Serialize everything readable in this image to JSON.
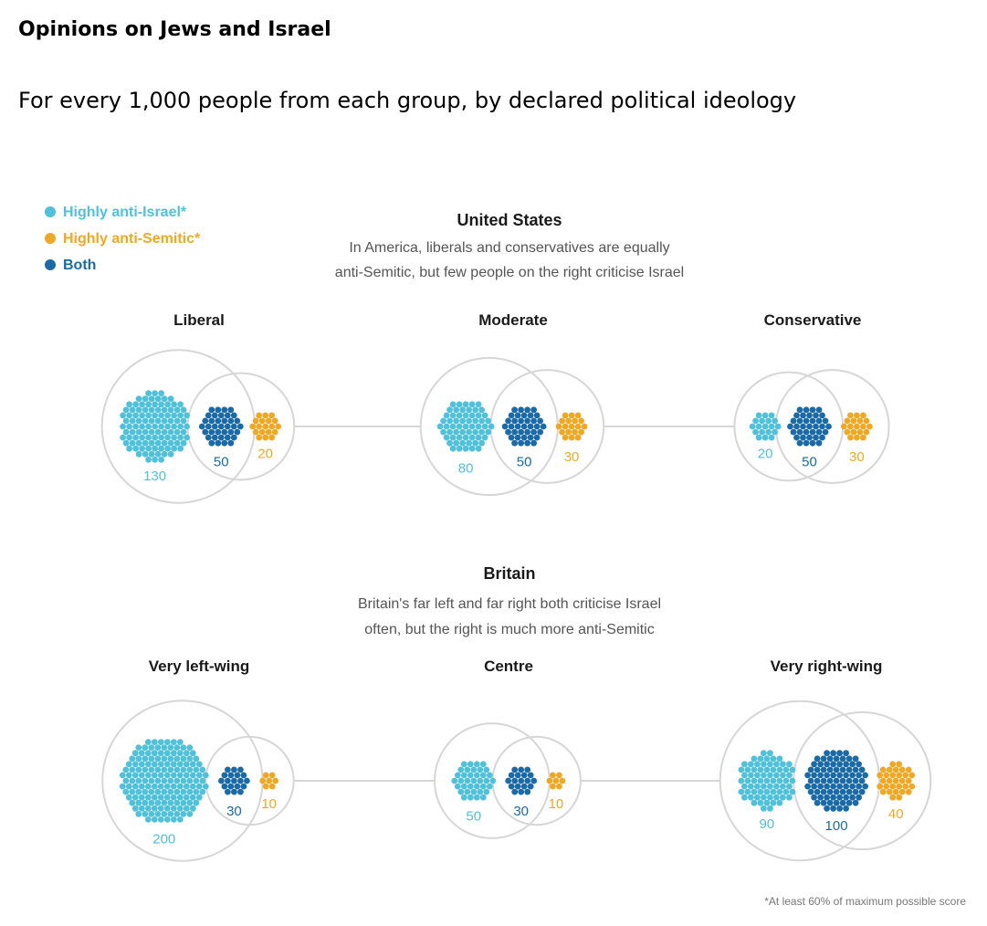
{
  "title": "Opinions on Jews and Israel",
  "subtitle": "For every 1,000 people from each group, by declared political ideology",
  "colors": {
    "anti_israel": "#4fc1da",
    "anti_semitic": "#efa823",
    "both": "#1a6aa8",
    "ring": "#d6d6d6"
  },
  "chart_data": {
    "type": "scatter",
    "legend": [
      {
        "key": "anti_israel",
        "label": "Highly anti-Israel*"
      },
      {
        "key": "anti_semitic",
        "label": "Highly anti-Semitic*"
      },
      {
        "key": "both",
        "label": "Both"
      }
    ],
    "legend_position": "top-left",
    "footnote": "*At least 60% of maximum possible score",
    "panels": [
      {
        "country": "United States",
        "description": [
          "In America, liberals and conservatives are equally",
          "anti-Semitic, but few people on the right criticise Israel"
        ],
        "groups": [
          {
            "name": "Liberal",
            "anti_israel": 130,
            "both": 50,
            "anti_semitic": 20
          },
          {
            "name": "Moderate",
            "anti_israel": 80,
            "both": 50,
            "anti_semitic": 30
          },
          {
            "name": "Conservative",
            "anti_israel": 20,
            "both": 50,
            "anti_semitic": 30
          }
        ]
      },
      {
        "country": "Britain",
        "description": [
          "Britain's far left and far right both criticise Israel",
          "often, but the right is much more anti-Semitic"
        ],
        "groups": [
          {
            "name": "Very left-wing",
            "anti_israel": 200,
            "both": 30,
            "anti_semitic": 10
          },
          {
            "name": "Centre",
            "anti_israel": 50,
            "both": 30,
            "anti_semitic": 10
          },
          {
            "name": "Very right-wing",
            "anti_israel": 90,
            "both": 100,
            "anti_semitic": 40
          }
        ]
      }
    ]
  }
}
